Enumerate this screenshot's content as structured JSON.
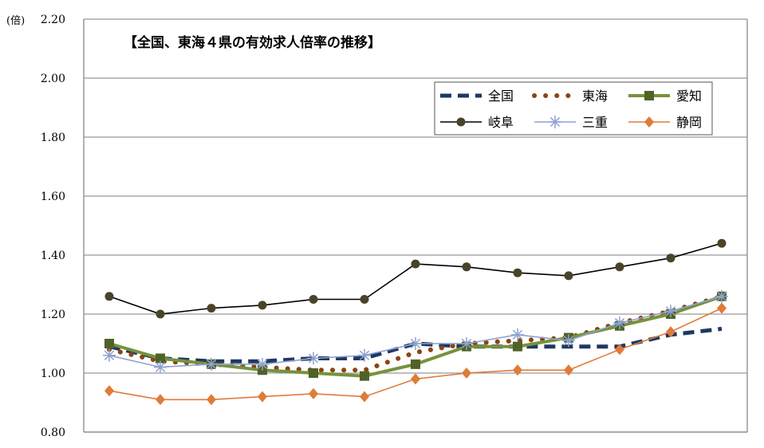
{
  "chart_data": {
    "type": "line",
    "title": "【全国、東海４県の有効求人倍率の推移】",
    "ylabel": "(倍)",
    "ylim": [
      0.8,
      2.2
    ],
    "yticks": [
      "0.80",
      "1.00",
      "1.20",
      "1.40",
      "1.60",
      "1.80",
      "2.00",
      "2.20"
    ],
    "grid": true,
    "legend_position": "top-right",
    "x": [
      1,
      2,
      3,
      4,
      5,
      6,
      7,
      8,
      9,
      10,
      11,
      12,
      13
    ],
    "series": [
      {
        "name": "全国",
        "color": "#1f3864",
        "style": "dash",
        "marker": "none",
        "values": [
          1.09,
          1.05,
          1.04,
          1.04,
          1.05,
          1.05,
          1.1,
          1.09,
          1.09,
          1.09,
          1.09,
          1.13,
          1.15
        ]
      },
      {
        "name": "東海",
        "color": "#8b4513",
        "style": "dot",
        "marker": "none",
        "values": [
          1.08,
          1.04,
          1.03,
          1.02,
          1.01,
          1.01,
          1.07,
          1.1,
          1.11,
          1.12,
          1.17,
          1.21,
          1.26
        ]
      },
      {
        "name": "愛知",
        "color": "#76923c",
        "style": "solid-thick",
        "marker": "square",
        "values": [
          1.1,
          1.05,
          1.03,
          1.01,
          1.0,
          0.99,
          1.03,
          1.09,
          1.09,
          1.12,
          1.16,
          1.2,
          1.26
        ]
      },
      {
        "name": "岐阜",
        "color": "#000000",
        "style": "solid",
        "marker": "circle",
        "values": [
          1.26,
          1.2,
          1.22,
          1.23,
          1.25,
          1.25,
          1.37,
          1.36,
          1.34,
          1.33,
          1.36,
          1.39,
          1.44
        ]
      },
      {
        "name": "三重",
        "color": "#8ea3cf",
        "style": "solid",
        "marker": "star",
        "values": [
          1.06,
          1.02,
          1.03,
          1.03,
          1.05,
          1.06,
          1.1,
          1.1,
          1.13,
          1.11,
          1.17,
          1.21,
          1.26
        ]
      },
      {
        "name": "静岡",
        "color": "#e07b39",
        "style": "solid",
        "marker": "diamond",
        "values": [
          0.94,
          0.91,
          0.91,
          0.92,
          0.93,
          0.92,
          0.98,
          1.0,
          1.01,
          1.01,
          1.08,
          1.14,
          1.22
        ]
      }
    ]
  }
}
